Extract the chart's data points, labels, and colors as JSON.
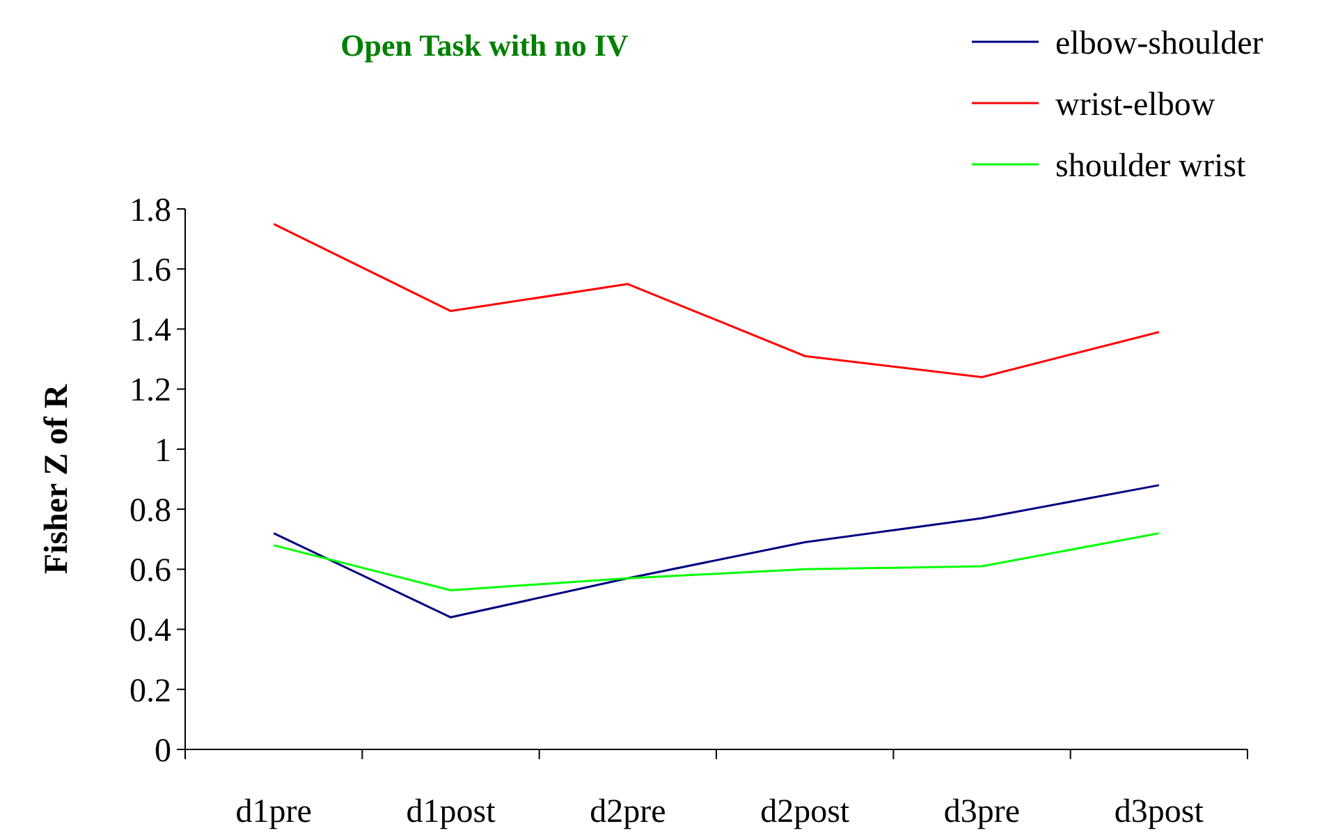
{
  "chart_data": {
    "type": "line",
    "title": "Open Task with no IV",
    "ylabel": "Fisher Z of R",
    "categories": [
      "d1pre",
      "d1post",
      "d2pre",
      "d2post",
      "d3pre",
      "d3post"
    ],
    "series": [
      {
        "name": "elbow-shoulder",
        "color": "#000080",
        "values": [
          0.72,
          0.44,
          0.57,
          0.69,
          0.77,
          0.88
        ]
      },
      {
        "name": "wrist-elbow",
        "color": "#ff0000",
        "values": [
          1.75,
          1.46,
          1.55,
          1.31,
          1.24,
          1.39
        ]
      },
      {
        "name": "shoulder wrist",
        "color": "#00ff00",
        "values": [
          0.68,
          0.53,
          0.57,
          0.6,
          0.61,
          0.72
        ]
      }
    ],
    "ylim": [
      0,
      1.8
    ],
    "yticks": [
      0,
      0.2,
      0.4,
      0.6,
      0.8,
      1,
      1.2,
      1.4,
      1.6,
      1.8
    ],
    "grid": false,
    "legend": "top right",
    "marker": "none",
    "line_style": "solid"
  }
}
